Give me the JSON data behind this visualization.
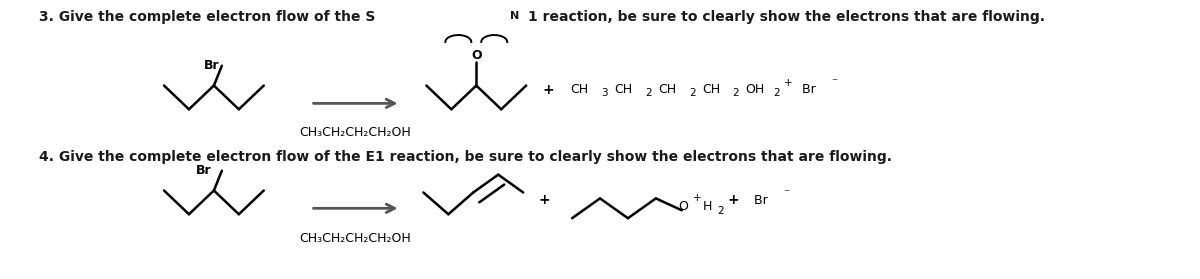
{
  "bg_color": "#ffffff",
  "text_color": "#1a1a1a",
  "arrow_color": "#555555",
  "struct_color": "#000000",
  "sn1_reagent_below": "CH₃CH₂CH₂CH₂OH",
  "e1_reagent_below": "CH₃CH₂CH₂CH₂OH",
  "line1_pre": "3. Give the complete electron flow of the S",
  "line1_sub": "N",
  "line1_post": "1 reaction, be sure to clearly show the electrons that are flowing.",
  "line2": "4. Give the complete electron flow of the E1 reaction, be sure to clearly show the electrons that are flowing.",
  "plus": "+",
  "sn1_product_chain": "CH₃CH₂CH₂CH₂",
  "oh2_label": "OH",
  "br_label": "Br"
}
